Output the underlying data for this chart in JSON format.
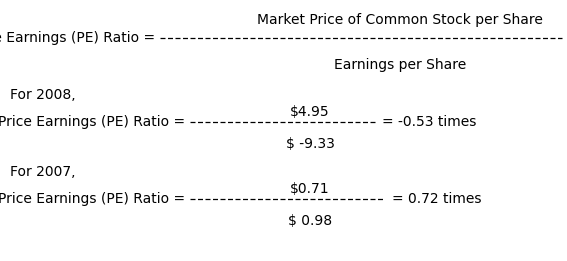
{
  "bg_color": "#ffffff",
  "font_family": "DejaVu Sans",
  "font_size": 10,
  "title_formula_label": "Price Earnings (PE) Ratio =",
  "title_numerator": "Market Price of Common Stock per Share",
  "title_denominator": "Earnings per Share",
  "for_2008_label": "For 2008,",
  "label_2008": "Price Earnings (PE) Ratio =",
  "numerator_2008": "$4.95",
  "denominator_2008": "$ -9.33",
  "result_2008": "= -0.53 times",
  "for_2007_label": "For 2007,",
  "label_2007": "Price Earnings (PE) Ratio =",
  "numerator_2007": "$0.71",
  "denominator_2007": "$ 0.98",
  "result_2007": "= 0.72 times",
  "fig_width": 5.67,
  "fig_height": 2.61,
  "dpi": 100
}
